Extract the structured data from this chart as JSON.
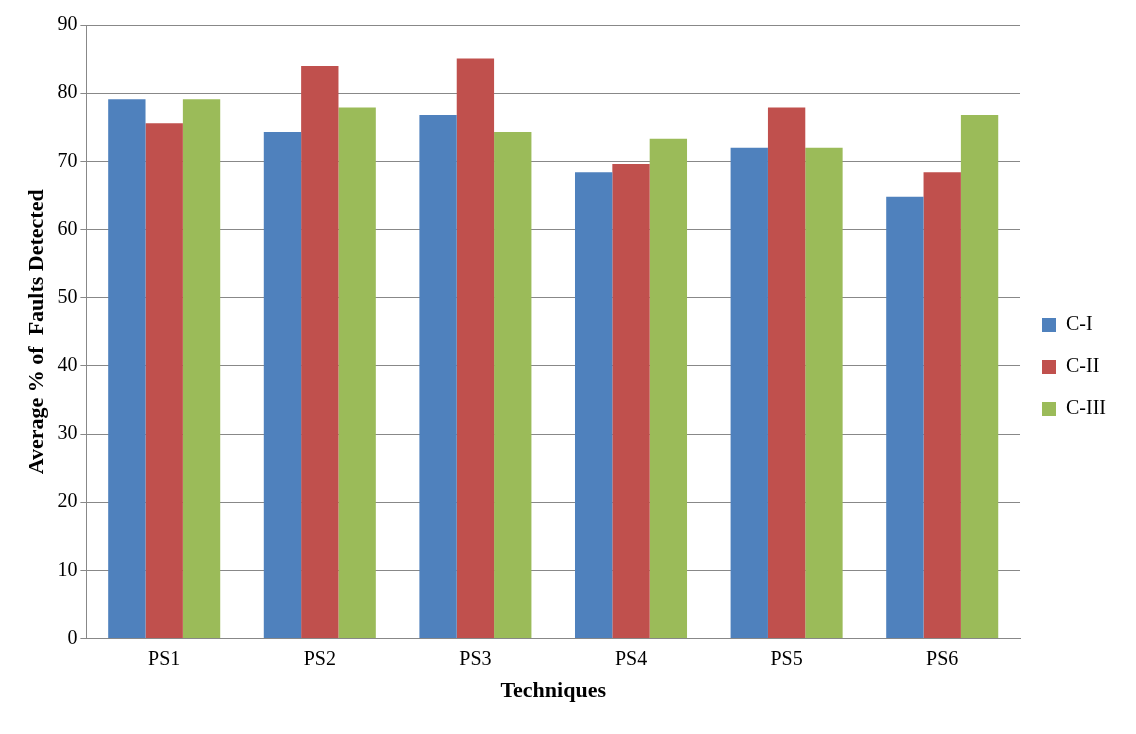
{
  "chart_data": {
    "type": "bar",
    "xlabel": "Techniques",
    "ylabel": "Average % of  Faults Detected",
    "categories": [
      "PS1",
      "PS2",
      "PS3",
      "PS4",
      "PS5",
      "PS6"
    ],
    "series": [
      {
        "name": "C-I",
        "color": "#4f81bd",
        "values": [
          79.1,
          74.3,
          76.8,
          68.4,
          72.0,
          64.8
        ]
      },
      {
        "name": "C-II",
        "color": "#c0504d",
        "values": [
          75.6,
          84.0,
          85.1,
          69.6,
          77.9,
          68.4
        ]
      },
      {
        "name": "C-III",
        "color": "#9bbb59",
        "values": [
          79.1,
          77.9,
          74.3,
          73.3,
          72.0,
          76.8
        ]
      }
    ],
    "ylim": [
      0,
      90
    ],
    "yticks": [
      0,
      10,
      20,
      30,
      40,
      50,
      60,
      70,
      80,
      90
    ],
    "grid": "y",
    "legend": "right"
  }
}
